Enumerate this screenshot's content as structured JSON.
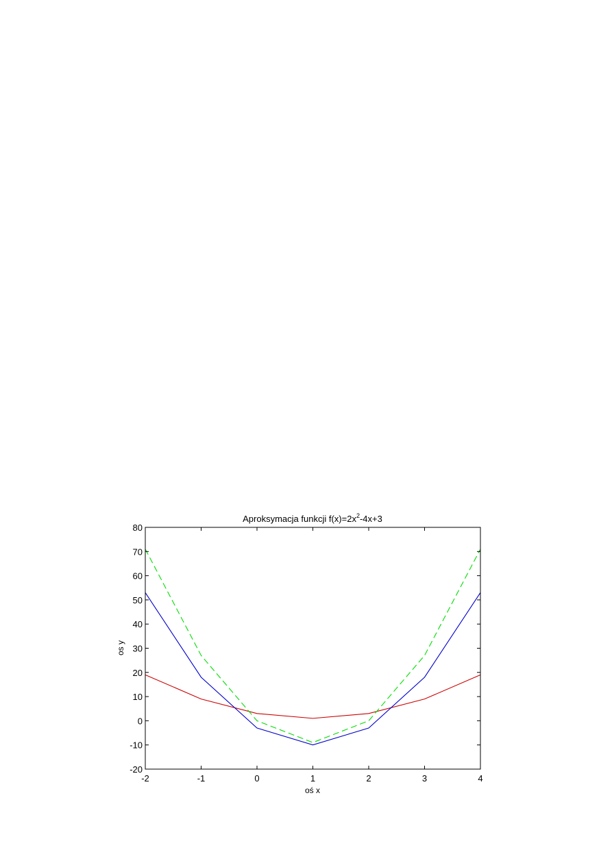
{
  "chart_data": {
    "type": "line",
    "title": {
      "prefix": "Aproksymacja funkcji f(x)=2x",
      "superscript": "2",
      "suffix": "-4x+3"
    },
    "xlabel": "oś x",
    "ylabel": "os y",
    "xlim": [
      -2,
      4
    ],
    "ylim": [
      -20,
      80
    ],
    "x_ticks": [
      -2,
      -1,
      0,
      1,
      2,
      3,
      4
    ],
    "y_ticks": [
      -20,
      -10,
      0,
      10,
      20,
      30,
      40,
      50,
      60,
      70,
      80
    ],
    "grid": false,
    "x": [
      -2,
      -1,
      0,
      1,
      2,
      3,
      4
    ],
    "series": [
      {
        "color": "#cc0000",
        "style": "solid",
        "values": [
          19,
          9,
          3,
          1,
          3,
          9,
          19
        ]
      },
      {
        "color": "#0000cc",
        "style": "solid",
        "values": [
          53,
          18,
          -3,
          -10,
          -3,
          18,
          53
        ]
      },
      {
        "color": "#00dd00",
        "style": "dashed",
        "values": [
          71,
          27,
          0,
          -9,
          0,
          27,
          71
        ]
      }
    ]
  }
}
